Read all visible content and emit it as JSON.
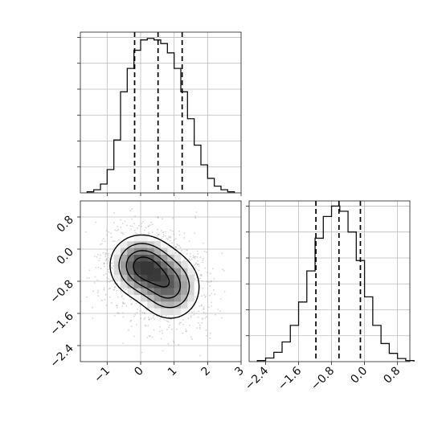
{
  "chart_data": [
    {
      "type": "histogram",
      "panel": "marginal-x",
      "xlim": [
        -1.8,
        3.0
      ],
      "ylim": [
        0,
        3100
      ],
      "bins": {
        "start": -1.6,
        "width": 0.2,
        "counts": [
          20,
          60,
          170,
          450,
          1020,
          1950,
          2400,
          2750,
          2950,
          2980,
          2950,
          2880,
          2700,
          2400,
          1950,
          1430,
          920,
          540,
          280,
          130,
          60,
          20
        ]
      },
      "quantiles": [
        -0.18,
        0.52,
        1.24
      ],
      "grid": true
    },
    {
      "type": "contour_density",
      "panel": "joint",
      "xlim": [
        -1.8,
        3.0
      ],
      "ylim": [
        -2.8,
        1.2
      ],
      "xticks": [
        "−1",
        "0",
        "1",
        "2",
        "3"
      ],
      "yticks": [
        "0.8",
        "0.0",
        "−0.8",
        "−1.6",
        "−2.4"
      ],
      "xtick_values": [
        -1,
        0,
        1,
        2,
        3
      ],
      "ytick_values": [
        0.8,
        0.0,
        -0.8,
        -1.6,
        -2.4
      ],
      "modes": [
        {
          "x": 0.0,
          "y": -0.4,
          "sx": 0.55,
          "sy": 0.45,
          "weight": 0.55
        },
        {
          "x": 0.9,
          "y": -0.95,
          "sx": 0.55,
          "sy": 0.5,
          "weight": 0.45
        }
      ],
      "grid": true
    },
    {
      "type": "histogram",
      "panel": "marginal-y",
      "xlim": [
        -2.8,
        1.1
      ],
      "ylim": [
        0,
        3100
      ],
      "bins": {
        "start": -2.6,
        "width": 0.2,
        "counts": [
          20,
          70,
          180,
          380,
          700,
          1150,
          1750,
          2380,
          2800,
          3000,
          2900,
          2500,
          1950,
          1250,
          700,
          350,
          160,
          60,
          20
        ]
      },
      "quantiles": [
        -1.18,
        -0.62,
        -0.1
      ],
      "xticks": [
        "−2.4",
        "−1.6",
        "−0.8",
        "0.0",
        "0.8"
      ],
      "xtick_values": [
        -2.4,
        -1.6,
        -0.8,
        0.0,
        0.8
      ],
      "grid": true
    }
  ]
}
